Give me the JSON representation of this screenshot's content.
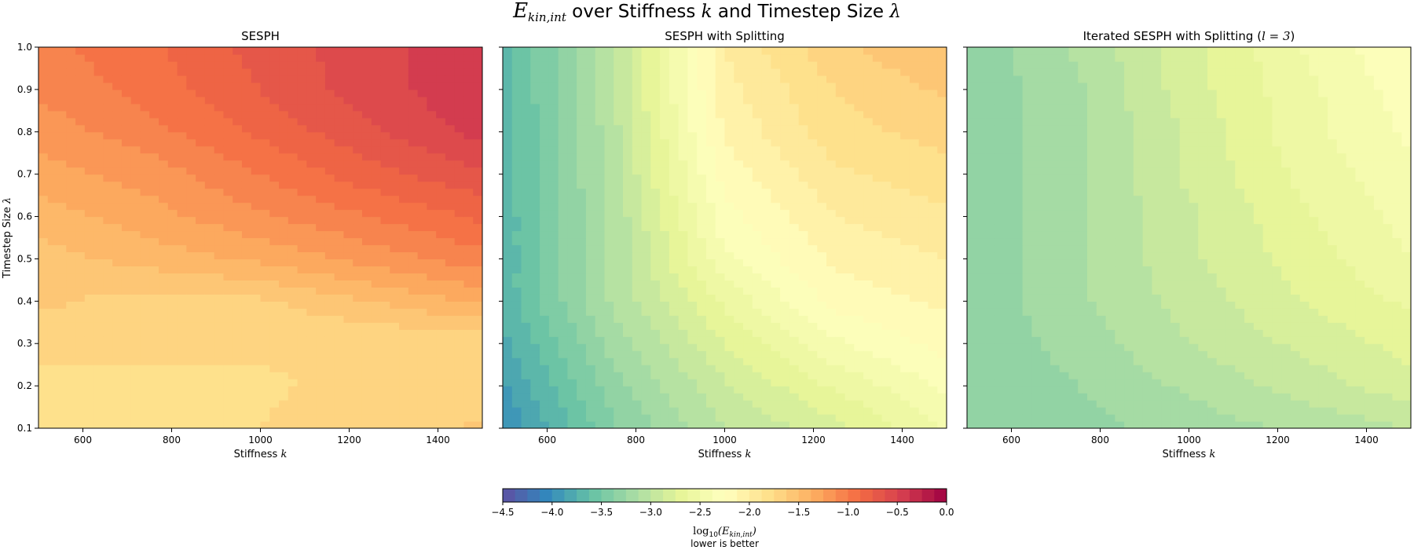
{
  "chart_data": {
    "type": "heatmap",
    "title": {
      "lead": "E",
      "lead_sub": "kin,int",
      "mid": " over Stiffness ",
      "k": "k",
      "mid2": " and Timestep Size ",
      "lambda": "λ"
    },
    "x_range": [
      500,
      1500
    ],
    "y_range": [
      0.1,
      1.0
    ],
    "x_ticks": [
      "600",
      "800",
      "1000",
      "1200",
      "1400"
    ],
    "x_tick_values": [
      600,
      800,
      1000,
      1200,
      1400
    ],
    "y_ticks": [
      "0.1",
      "0.2",
      "0.3",
      "0.4",
      "0.5",
      "0.6",
      "0.7",
      "0.8",
      "0.9",
      "1.0"
    ],
    "y_tick_values": [
      0.1,
      0.2,
      0.3,
      0.4,
      0.5,
      0.6,
      0.7,
      0.8,
      0.9,
      1.0
    ],
    "xlabel": {
      "text": "Stiffness ",
      "var": "k"
    },
    "ylabel": {
      "text": "Timestep Size ",
      "var": "λ"
    },
    "grid_x": [
      500,
      750,
      1000,
      1250,
      1500
    ],
    "grid_y": [
      0.1,
      0.2,
      0.3,
      0.4,
      0.5,
      0.6,
      0.7,
      0.8,
      0.9,
      1.0
    ],
    "panels": [
      {
        "title": "SESPH",
        "title_var": "",
        "title_close": "",
        "values": [
          [
            -1.8,
            -1.78,
            -1.75,
            -1.7,
            -1.6
          ],
          [
            -1.8,
            -1.78,
            -1.76,
            -1.73,
            -1.72
          ],
          [
            -1.7,
            -1.72,
            -1.74,
            -1.74,
            -1.74
          ],
          [
            -1.6,
            -1.68,
            -1.65,
            -1.5,
            -1.35
          ],
          [
            -1.55,
            -1.45,
            -1.35,
            -1.2,
            -1.05
          ],
          [
            -1.45,
            -1.3,
            -1.15,
            -1.0,
            -0.85
          ],
          [
            -1.3,
            -1.2,
            -1.0,
            -0.8,
            -0.65
          ],
          [
            -1.2,
            -1.05,
            -0.85,
            -0.65,
            -0.45
          ],
          [
            -1.1,
            -0.95,
            -0.75,
            -0.55,
            -0.4
          ],
          [
            -1.05,
            -0.9,
            -0.7,
            -0.55,
            -0.4
          ]
        ]
      },
      {
        "title": "SESPH with Splitting",
        "title_var": "",
        "title_close": "",
        "values": [
          [
            -4.0,
            -3.4,
            -3.0,
            -2.8,
            -2.5
          ],
          [
            -3.9,
            -3.3,
            -2.9,
            -2.6,
            -2.35
          ],
          [
            -3.8,
            -3.2,
            -2.75,
            -2.4,
            -2.2
          ],
          [
            -3.7,
            -3.1,
            -2.6,
            -2.2,
            -2.1
          ],
          [
            -3.7,
            -3.1,
            -2.4,
            -2.1,
            -2.0
          ],
          [
            -3.7,
            -3.1,
            -2.3,
            -2.0,
            -1.9
          ],
          [
            -3.7,
            -3.05,
            -2.2,
            -1.9,
            -1.8
          ],
          [
            -3.7,
            -3.05,
            -2.1,
            -1.8,
            -1.7
          ],
          [
            -3.7,
            -3.0,
            -2.05,
            -1.75,
            -1.6
          ],
          [
            -3.7,
            -3.0,
            -2.0,
            -1.65,
            -1.5
          ]
        ]
      },
      {
        "title": "Iterated SESPH with Splitting (",
        "title_var": "l = 3",
        "title_close": ")",
        "values": [
          [
            -3.35,
            -3.3,
            -3.2,
            -3.1,
            -3.0
          ],
          [
            -3.35,
            -3.25,
            -3.1,
            -2.95,
            -2.8
          ],
          [
            -3.35,
            -3.2,
            -3.0,
            -2.85,
            -2.7
          ],
          [
            -3.35,
            -3.15,
            -2.95,
            -2.75,
            -2.6
          ],
          [
            -3.35,
            -3.15,
            -2.9,
            -2.7,
            -2.5
          ],
          [
            -3.35,
            -3.15,
            -2.9,
            -2.65,
            -2.45
          ],
          [
            -3.35,
            -3.15,
            -2.85,
            -2.6,
            -2.4
          ],
          [
            -3.35,
            -3.15,
            -2.85,
            -2.55,
            -2.35
          ],
          [
            -3.35,
            -3.15,
            -2.8,
            -2.55,
            -2.3
          ],
          [
            -3.35,
            -3.1,
            -2.8,
            -2.5,
            -2.25
          ]
        ]
      }
    ],
    "colorbar": {
      "range": [
        -4.5,
        0.0
      ],
      "levels": 36,
      "ticks": [
        "−4.5",
        "−4.0",
        "−3.5",
        "−3.0",
        "−2.5",
        "−2.0",
        "−1.5",
        "−1.0",
        "−0.5",
        "0.0"
      ],
      "tick_values": [
        -4.5,
        -4.0,
        -3.5,
        -3.0,
        -2.5,
        -2.0,
        -1.5,
        -1.0,
        -0.5,
        0.0
      ],
      "label_fn": "log",
      "label_fn_sub": "10",
      "label_arg": "(E",
      "label_arg_sub": "kin,int",
      "label_close": ")",
      "sublabel": "lower is better"
    },
    "colormap": "Spectral_r",
    "colormap_stops": [
      "#5e4fa2",
      "#3288bd",
      "#66c2a5",
      "#abdda4",
      "#e6f598",
      "#ffffbf",
      "#fee08b",
      "#fdae61",
      "#f46d43",
      "#d53e4f",
      "#9e0142"
    ]
  }
}
